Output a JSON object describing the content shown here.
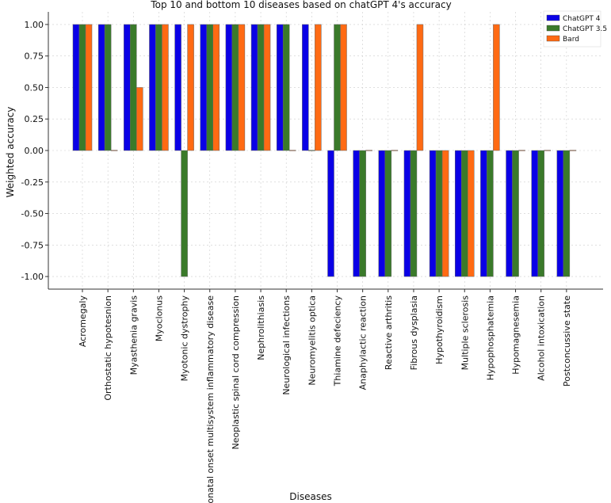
{
  "chart_data": {
    "type": "bar",
    "title": "Top 10 and bottom 10 diseases based on chatGPT 4's accuracy",
    "xlabel": "Diseases",
    "ylabel": "Weighted accuracy",
    "ylim": [
      -1.1,
      1.1
    ],
    "yticks": [
      1.0,
      0.75,
      0.5,
      0.25,
      0.0,
      -0.25,
      -0.5,
      -0.75,
      -1.0
    ],
    "ytick_labels": [
      "1.00",
      "0.75",
      "0.50",
      "0.25",
      "0.00",
      "-0.25",
      "-0.50",
      "-0.75",
      "-1.00"
    ],
    "grid": true,
    "legend_position": "top-right",
    "categories": [
      "Acromegaly",
      "Orthostatic hypotesnion",
      "Myasthenia gravis",
      "Myoclonus",
      "Myotonic dystrophy",
      "Neonatal onset multisystem inflammatory disease",
      "Neoplastic spinal cord compression",
      "Nephrolithiasis",
      "Neurological infections",
      "Neuromyelitis optica",
      "Thiamine defeciency",
      "Anaphylactic reaction",
      "Reactive arthritis",
      "Fibrous dysplasia",
      "Hypothyroidism",
      "Multiple sclerosis",
      "Hypophosphatemia",
      "Hypomagnesemia",
      "Alcohol intoxication",
      "Postconcussive state"
    ],
    "series": [
      {
        "name": "ChatGPT 4",
        "color": "#0a00e6",
        "values": [
          1,
          1,
          1,
          1,
          1,
          1,
          1,
          1,
          1,
          1,
          -1,
          -1,
          -1,
          -1,
          -1,
          -1,
          -1,
          -1,
          -1,
          -1
        ]
      },
      {
        "name": "ChatGPT 3.5",
        "color": "#3a7a2a",
        "values": [
          1,
          1,
          1,
          1,
          -1,
          1,
          1,
          1,
          1,
          0,
          1,
          -1,
          -1,
          -1,
          -1,
          -1,
          -1,
          -1,
          -1,
          -1
        ]
      },
      {
        "name": "Bard",
        "color": "#ff6a13",
        "values": [
          1,
          0,
          0.5,
          1,
          1,
          1,
          1,
          1,
          0,
          1,
          1,
          0,
          0,
          1,
          -1,
          -1,
          1,
          0,
          0,
          0
        ]
      }
    ]
  }
}
